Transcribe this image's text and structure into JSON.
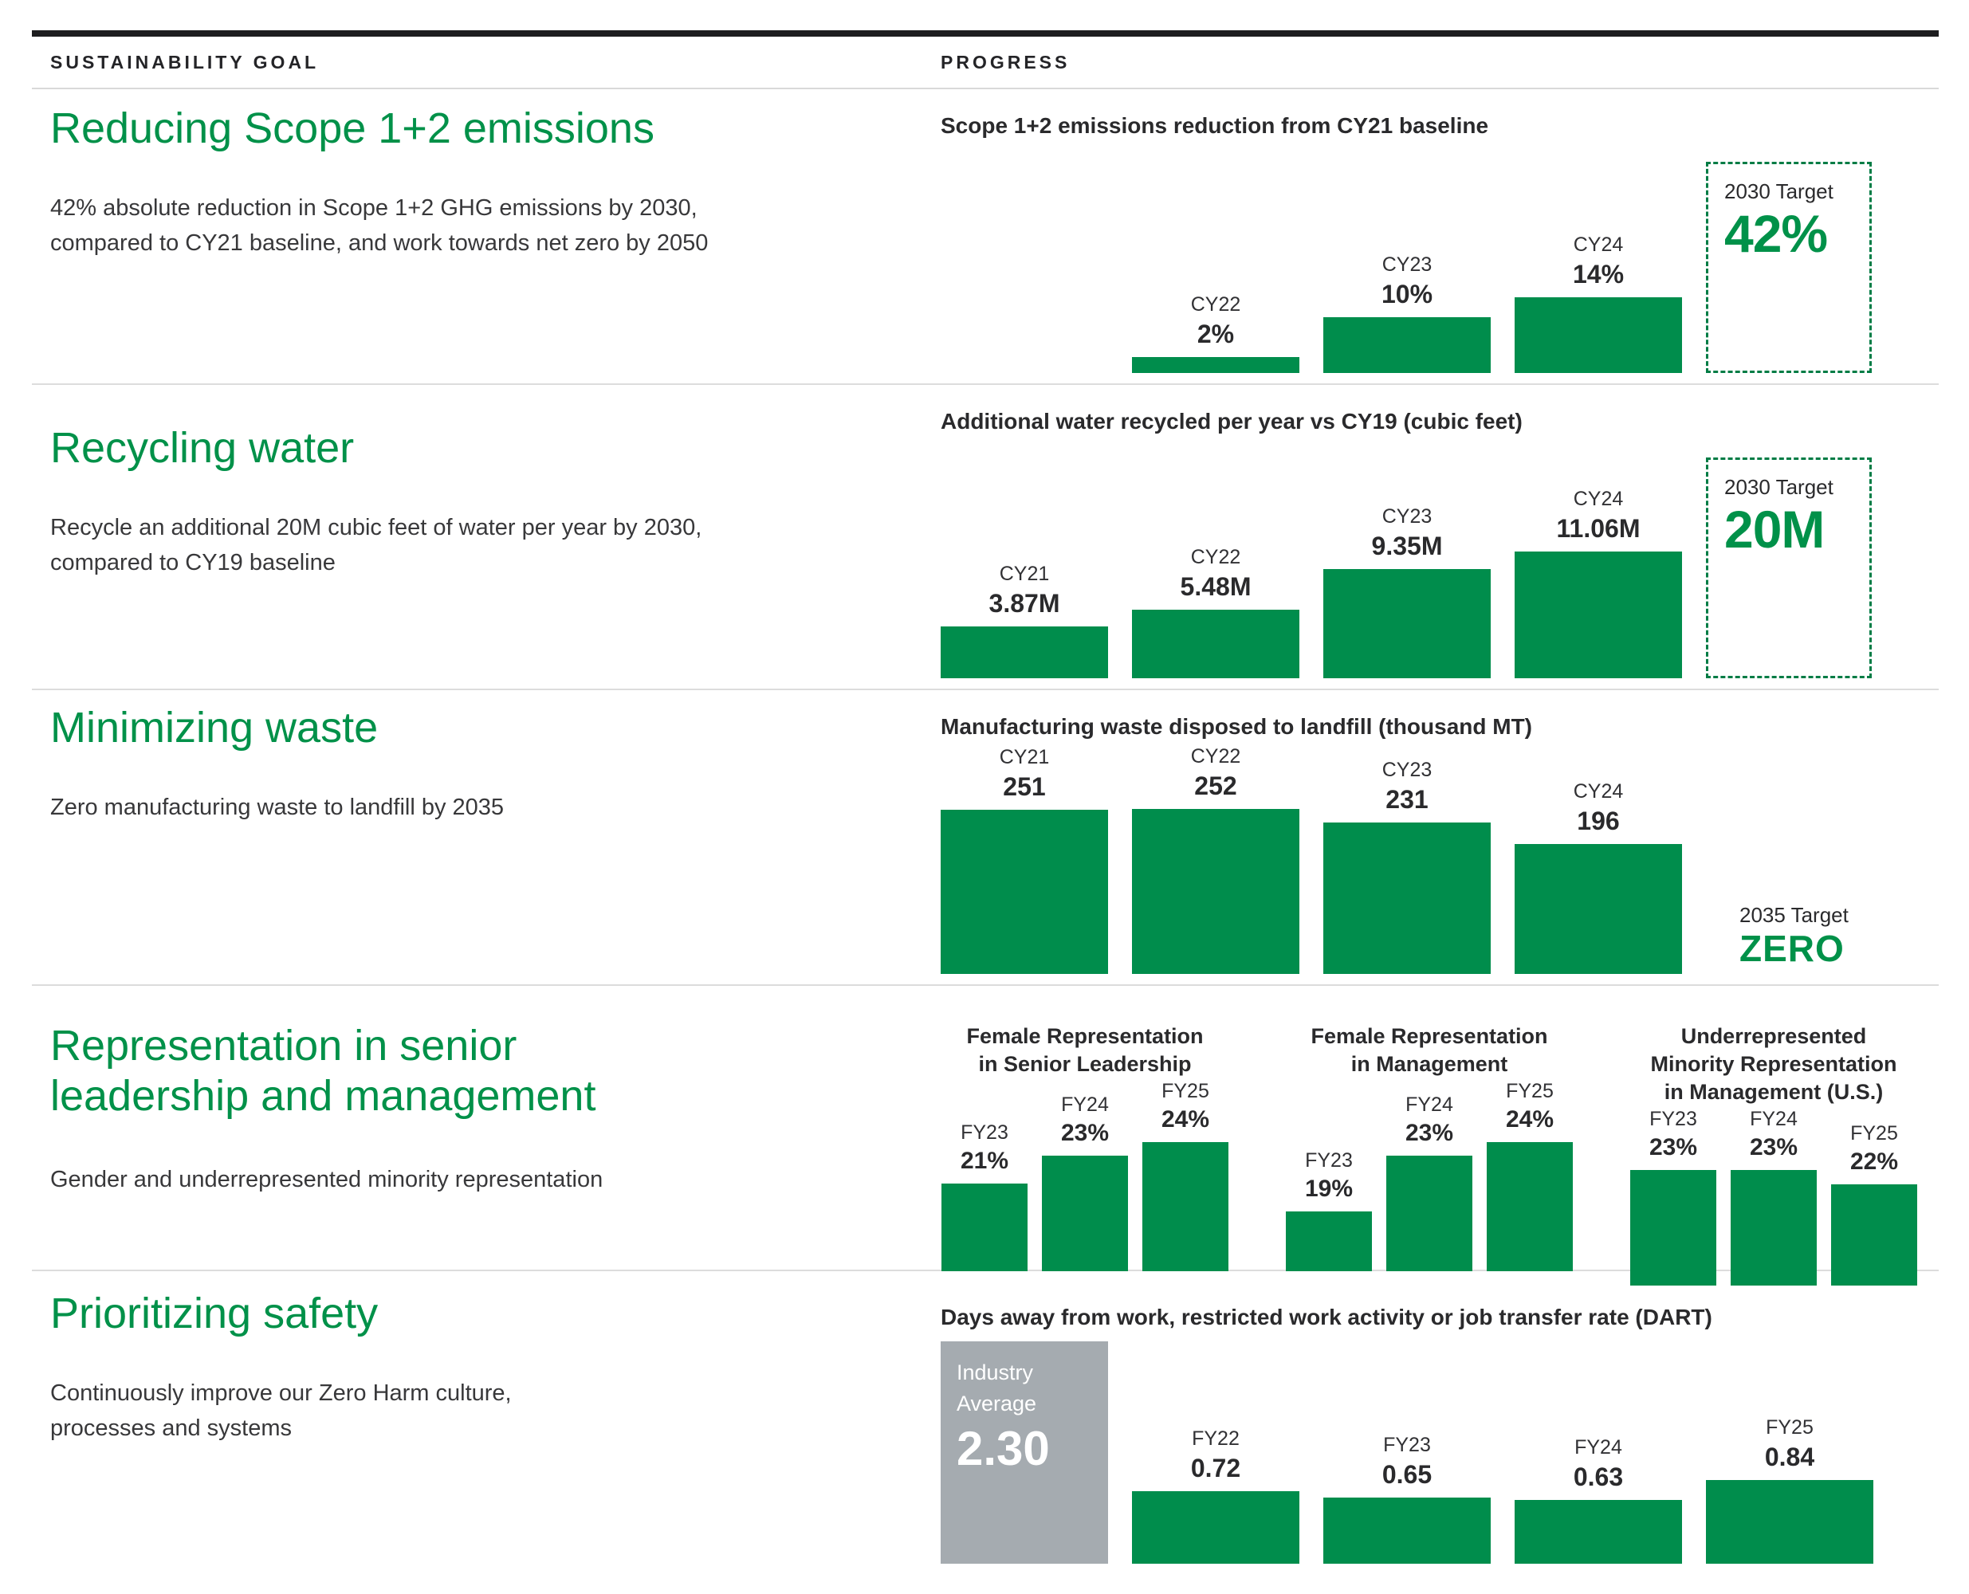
{
  "header": {
    "goal_column": "SUSTAINABILITY GOAL",
    "progress_column": "PROGRESS"
  },
  "colors": {
    "heading_green": "#009149",
    "bar_green": "#008d4c",
    "dashed_border_green": "#007c45",
    "industry_gray": "#a5abb0",
    "text_dark": "#2a2a2c",
    "top_bar_black": "#1d1d1f"
  },
  "rows": [
    {
      "goal_title": "Reducing Scope 1+2 emissions",
      "goal_desc": "42% absolute reduction in Scope 1+2 GHG emissions by 2030,\ncompared to CY21 baseline, and work towards net zero by 2050"
    },
    {
      "goal_title": "Recycling water",
      "goal_desc": "Recycle an additional 20M cubic feet of water per year by 2030,\ncompared to CY19 baseline"
    },
    {
      "goal_title": "Minimizing waste",
      "goal_desc": "Zero manufacturing waste to landfill by 2035"
    },
    {
      "goal_title": "Representation in senior\nleadership and management",
      "goal_desc": "Gender and underrepresented minority representation"
    },
    {
      "goal_title": "Prioritizing safety",
      "goal_desc": "Continuously improve our Zero Harm culture,\nprocesses and systems"
    }
  ],
  "chart_data": [
    {
      "type": "bar",
      "title": "Scope 1+2 emissions reduction from CY21 baseline",
      "categories": [
        "CY22",
        "CY23",
        "CY24"
      ],
      "values": [
        2,
        10,
        14
      ],
      "value_labels": [
        "2%",
        "10%",
        "14%"
      ],
      "target_label": "2030 Target",
      "target_value": "42%",
      "target_numeric": 42,
      "ylabel": "",
      "xlabel": ""
    },
    {
      "type": "bar",
      "title": "Additional water recycled per year vs CY19 (cubic feet)",
      "categories": [
        "CY21",
        "CY22",
        "CY23",
        "CY24"
      ],
      "values": [
        3.87,
        5.48,
        9.35,
        11.06
      ],
      "value_labels": [
        "3.87M",
        "5.48M",
        "9.35M",
        "11.06M"
      ],
      "target_label": "2030 Target",
      "target_value": "20M",
      "target_numeric": 20,
      "ylabel": "",
      "xlabel": ""
    },
    {
      "type": "bar",
      "title": "Manufacturing waste disposed to landfill (thousand MT)",
      "categories": [
        "CY21",
        "CY22",
        "CY23",
        "CY24"
      ],
      "values": [
        251,
        252,
        231,
        196
      ],
      "value_labels": [
        "251",
        "252",
        "231",
        "196"
      ],
      "target_label": "2035 Target",
      "target_value": "ZERO",
      "ylabel": "",
      "xlabel": ""
    },
    {
      "type": "bar",
      "subcharts": [
        {
          "title": "Female Representation\nin Senior Leadership",
          "categories": [
            "FY23",
            "FY24",
            "FY25"
          ],
          "values": [
            21,
            23,
            24
          ],
          "value_labels": [
            "21%",
            "23%",
            "24%"
          ]
        },
        {
          "title": "Female Representation\nin Management",
          "categories": [
            "FY23",
            "FY24",
            "FY25"
          ],
          "values": [
            19,
            23,
            24
          ],
          "value_labels": [
            "19%",
            "23%",
            "24%"
          ]
        },
        {
          "title": "Underrepresented\nMinority Representation\nin Management (U.S.)",
          "categories": [
            "FY23",
            "FY24",
            "FY25"
          ],
          "values": [
            23,
            23,
            22
          ],
          "value_labels": [
            "23%",
            "23%",
            "22%"
          ]
        }
      ]
    },
    {
      "type": "bar",
      "title": "Days away from work, restricted work activity or job transfer rate (DART)",
      "benchmark_label": "Industry\nAverage",
      "benchmark_value": "2.30",
      "benchmark_numeric": 2.3,
      "categories": [
        "FY22",
        "FY23",
        "FY24",
        "FY25"
      ],
      "values": [
        0.72,
        0.65,
        0.63,
        0.84
      ],
      "value_labels": [
        "0.72",
        "0.65",
        "0.63",
        "0.84"
      ],
      "ylabel": "",
      "xlabel": ""
    }
  ]
}
